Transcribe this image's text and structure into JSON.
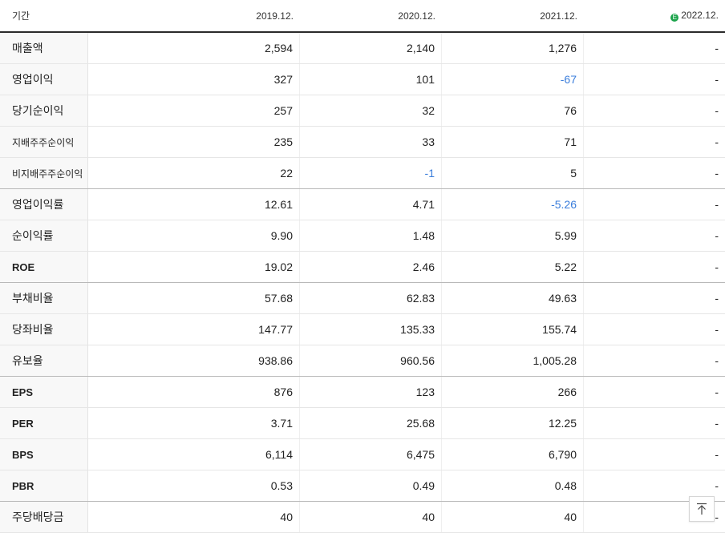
{
  "header": {
    "label": "기간",
    "periods": [
      "2019.12.",
      "2020.12.",
      "2021.12.",
      "2022.12."
    ],
    "estimate_badge": "E"
  },
  "rows": [
    {
      "label": "매출액",
      "values": [
        "2,594",
        "2,140",
        "1,276",
        "-"
      ]
    },
    {
      "label": "영업이익",
      "values": [
        "327",
        "101",
        "-67",
        "-"
      ]
    },
    {
      "label": "당기순이익",
      "values": [
        "257",
        "32",
        "76",
        "-"
      ]
    },
    {
      "label": "지배주주순이익",
      "values": [
        "235",
        "33",
        "71",
        "-"
      ]
    },
    {
      "label": "비지배주주순이익",
      "values": [
        "22",
        "-1",
        "5",
        "-"
      ]
    },
    {
      "label": "영업이익률",
      "values": [
        "12.61",
        "4.71",
        "-5.26",
        "-"
      ]
    },
    {
      "label": "순이익률",
      "values": [
        "9.90",
        "1.48",
        "5.99",
        "-"
      ]
    },
    {
      "label": "ROE",
      "values": [
        "19.02",
        "2.46",
        "5.22",
        "-"
      ]
    },
    {
      "label": "부채비율",
      "values": [
        "57.68",
        "62.83",
        "49.63",
        "-"
      ]
    },
    {
      "label": "당좌비율",
      "values": [
        "147.77",
        "135.33",
        "155.74",
        "-"
      ]
    },
    {
      "label": "유보율",
      "values": [
        "938.86",
        "960.56",
        "1,005.28",
        "-"
      ]
    },
    {
      "label": "EPS",
      "values": [
        "876",
        "123",
        "266",
        "-"
      ]
    },
    {
      "label": "PER",
      "values": [
        "3.71",
        "25.68",
        "12.25",
        "-"
      ]
    },
    {
      "label": "BPS",
      "values": [
        "6,114",
        "6,475",
        "6,790",
        "-"
      ]
    },
    {
      "label": "PBR",
      "values": [
        "0.53",
        "0.49",
        "0.48",
        "-"
      ]
    },
    {
      "label": "주당배당금",
      "values": [
        "40",
        "40",
        "40",
        "-"
      ]
    }
  ],
  "colors": {
    "negative": "#3a7ddb",
    "estimate_badge": "#1aa34a"
  },
  "scroll_top_icon": "arrow-up-to-top-icon"
}
